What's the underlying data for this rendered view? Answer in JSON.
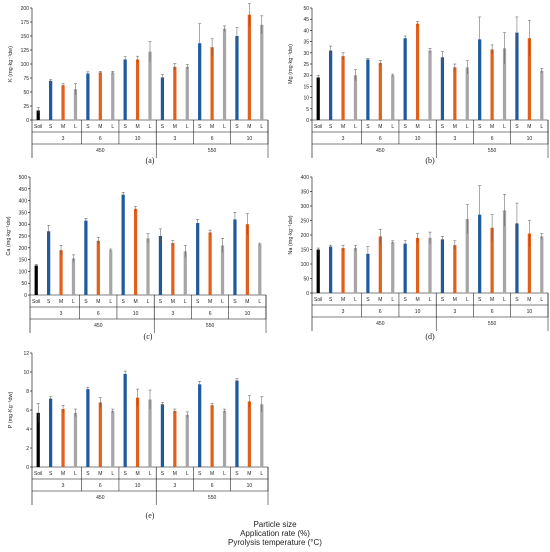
{
  "colors": {
    "soil": "#000000",
    "S": "#1f5a9f",
    "M": "#e0601c",
    "L": "#a6a6a6",
    "axis": "#000000",
    "text": "#222222"
  },
  "caption": [
    "Particle size",
    "Application rate (%)",
    "Pyrolysis temperature (°C)"
  ],
  "chart_data": [
    {
      "panel": "(a)",
      "type": "bar",
      "ylabel": "K (mg·kg⁻¹dw)",
      "ylim": [
        0,
        200
      ],
      "yticks": [
        0,
        25,
        50,
        75,
        100,
        125,
        150,
        175,
        200
      ],
      "soil": {
        "label": "Soil",
        "value": 17,
        "err": 5
      },
      "particle_labels": [
        "S",
        "M",
        "L"
      ],
      "groups": [
        {
          "temp": "450",
          "rate": "3",
          "values": [
            70,
            62,
            55
          ],
          "errors": [
            2,
            3,
            10
          ]
        },
        {
          "temp": "450",
          "rate": "6",
          "values": [
            83,
            85,
            85
          ],
          "errors": [
            3,
            2,
            2
          ]
        },
        {
          "temp": "450",
          "rate": "10",
          "values": [
            108,
            108,
            122
          ],
          "errors": [
            5,
            6,
            18
          ]
        },
        {
          "temp": "550",
          "rate": "3",
          "values": [
            76,
            95,
            95
          ],
          "errors": [
            5,
            6,
            4
          ]
        },
        {
          "temp": "550",
          "rate": "6",
          "values": [
            137,
            130,
            163
          ],
          "errors": [
            35,
            15,
            5
          ]
        },
        {
          "temp": "550",
          "rate": "10",
          "values": [
            150,
            188,
            170
          ],
          "errors": [
            15,
            20,
            16
          ]
        }
      ]
    },
    {
      "panel": "(b)",
      "type": "bar",
      "ylabel": "Mg (mg·kg⁻¹dw)",
      "ylim": [
        0,
        50
      ],
      "yticks": [
        0,
        5,
        10,
        15,
        20,
        25,
        30,
        35,
        40,
        45,
        50
      ],
      "soil": {
        "label": "Soil",
        "value": 19,
        "err": 1
      },
      "particle_labels": [
        "S",
        "M",
        "L"
      ],
      "groups": [
        {
          "temp": "450",
          "rate": "3",
          "values": [
            31,
            28.5,
            20
          ],
          "errors": [
            2,
            1.5,
            2.5
          ]
        },
        {
          "temp": "450",
          "rate": "6",
          "values": [
            27,
            25.5,
            20
          ],
          "errors": [
            0.5,
            1,
            0.5
          ]
        },
        {
          "temp": "450",
          "rate": "10",
          "values": [
            36.5,
            43,
            31
          ],
          "errors": [
            1,
            1,
            1
          ]
        },
        {
          "temp": "550",
          "rate": "3",
          "values": [
            28,
            23.5,
            23.5
          ],
          "errors": [
            2.5,
            1.5,
            3
          ]
        },
        {
          "temp": "550",
          "rate": "6",
          "values": [
            36,
            31.5,
            32
          ],
          "errors": [
            10,
            2,
            7
          ]
        },
        {
          "temp": "550",
          "rate": "10",
          "values": [
            39,
            36.5,
            22
          ],
          "errors": [
            7,
            8,
            1
          ]
        }
      ]
    },
    {
      "panel": "(c)",
      "type": "bar",
      "ylabel": "Ca (mg·kg⁻¹dw)",
      "ylim": [
        0,
        500
      ],
      "yticks": [
        0,
        50,
        100,
        150,
        200,
        250,
        300,
        350,
        400,
        450,
        500
      ],
      "soil": {
        "label": "Soil",
        "value": 125,
        "err": 5
      },
      "particle_labels": [
        "S",
        "M",
        "L"
      ],
      "groups": [
        {
          "temp": "450",
          "rate": "3",
          "values": [
            270,
            190,
            155
          ],
          "errors": [
            25,
            20,
            15
          ]
        },
        {
          "temp": "450",
          "rate": "6",
          "values": [
            315,
            230,
            190
          ],
          "errors": [
            10,
            15,
            5
          ]
        },
        {
          "temp": "450",
          "rate": "10",
          "values": [
            425,
            365,
            240
          ],
          "errors": [
            10,
            10,
            20
          ]
        },
        {
          "temp": "550",
          "rate": "3",
          "values": [
            250,
            220,
            185
          ],
          "errors": [
            30,
            10,
            25
          ]
        },
        {
          "temp": "550",
          "rate": "6",
          "values": [
            305,
            265,
            210
          ],
          "errors": [
            15,
            10,
            30
          ]
        },
        {
          "temp": "550",
          "rate": "10",
          "values": [
            320,
            300,
            215
          ],
          "errors": [
            30,
            45,
            5
          ]
        }
      ]
    },
    {
      "panel": "(d)",
      "type": "bar",
      "ylabel": "Na (mg·kg⁻¹dw)",
      "ylim": [
        0,
        400
      ],
      "yticks": [
        0,
        50,
        100,
        150,
        200,
        250,
        300,
        350,
        400
      ],
      "soil": {
        "label": "Soil",
        "value": 150,
        "err": 5
      },
      "particle_labels": [
        "S",
        "M",
        "L"
      ],
      "groups": [
        {
          "temp": "450",
          "rate": "3",
          "values": [
            160,
            155,
            155
          ],
          "errors": [
            5,
            10,
            10
          ]
        },
        {
          "temp": "450",
          "rate": "6",
          "values": [
            135,
            195,
            175
          ],
          "errors": [
            25,
            25,
            5
          ]
        },
        {
          "temp": "450",
          "rate": "10",
          "values": [
            170,
            190,
            190
          ],
          "errors": [
            10,
            15,
            20
          ]
        },
        {
          "temp": "550",
          "rate": "3",
          "values": [
            185,
            165,
            255
          ],
          "errors": [
            10,
            15,
            50
          ]
        },
        {
          "temp": "550",
          "rate": "6",
          "values": [
            270,
            225,
            285
          ],
          "errors": [
            100,
            45,
            55
          ]
        },
        {
          "temp": "550",
          "rate": "10",
          "values": [
            240,
            205,
            195
          ],
          "errors": [
            70,
            45,
            10
          ]
        }
      ]
    },
    {
      "panel": "(e)",
      "type": "bar",
      "ylabel": "P (mg·Kg⁻¹dw)",
      "ylim": [
        0,
        12
      ],
      "yticks": [
        0,
        2,
        4,
        6,
        8,
        10,
        12
      ],
      "soil": {
        "label": "Soil",
        "value": 5.7,
        "err": 1
      },
      "particle_labels": [
        "S",
        "M",
        "L"
      ],
      "groups": [
        {
          "temp": "450",
          "rate": "3",
          "values": [
            7.2,
            6.1,
            5.7
          ],
          "errors": [
            0.2,
            0.4,
            0.4
          ]
        },
        {
          "temp": "450",
          "rate": "6",
          "values": [
            8.2,
            6.8,
            5.9
          ],
          "errors": [
            0.2,
            0.5,
            0.2
          ]
        },
        {
          "temp": "450",
          "rate": "10",
          "values": [
            9.8,
            7.3,
            7.1
          ],
          "errors": [
            0.3,
            0.9,
            1
          ]
        },
        {
          "temp": "550",
          "rate": "3",
          "values": [
            6.6,
            5.9,
            5.5
          ],
          "errors": [
            0.2,
            0.2,
            0.3
          ]
        },
        {
          "temp": "550",
          "rate": "6",
          "values": [
            8.7,
            6.5,
            5.9
          ],
          "errors": [
            0.3,
            0.2,
            0.2
          ]
        },
        {
          "temp": "550",
          "rate": "10",
          "values": [
            9.1,
            6.9,
            6.6
          ],
          "errors": [
            0.2,
            0.6,
            0.8
          ]
        }
      ]
    }
  ]
}
